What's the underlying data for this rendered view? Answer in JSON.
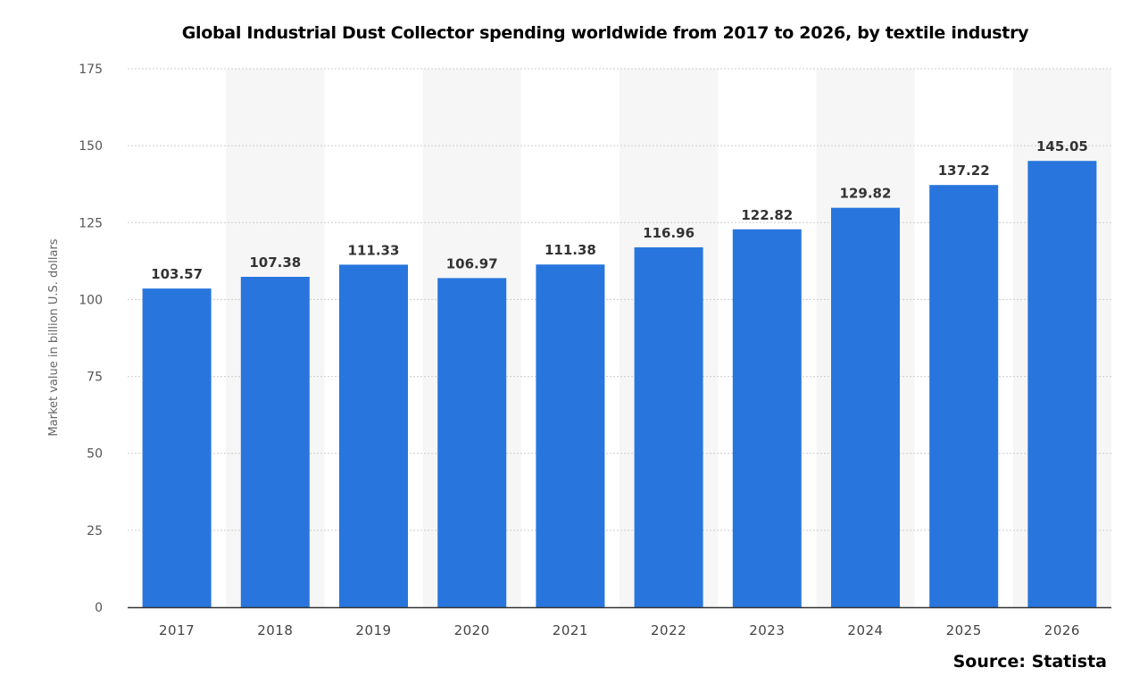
{
  "chart_data": {
    "type": "bar",
    "title": "Global Industrial Dust Collector spending worldwide from 2017 to 2026, by textile industry",
    "xlabel": "",
    "ylabel": "Market value in billion U.S. dollars",
    "categories": [
      "2017",
      "2018",
      "2019",
      "2020",
      "2021",
      "2022",
      "2023",
      "2024",
      "2025",
      "2026"
    ],
    "values": [
      103.57,
      107.38,
      111.33,
      106.97,
      111.38,
      116.96,
      122.82,
      129.82,
      137.22,
      145.05
    ],
    "value_labels": [
      "103.57",
      "107.38",
      "111.33",
      "106.97",
      "111.38",
      "116.96",
      "122.82",
      "129.82",
      "137.22",
      "145.05"
    ],
    "ylim": [
      0,
      175
    ],
    "yticks": [
      0,
      25,
      50,
      75,
      100,
      125,
      150,
      175
    ],
    "grid": true,
    "legend": "none",
    "bar_color": "#2876dd",
    "band_color": "#f6f6f6",
    "grid_color": "#cccccc",
    "source": "Source: Statista"
  }
}
